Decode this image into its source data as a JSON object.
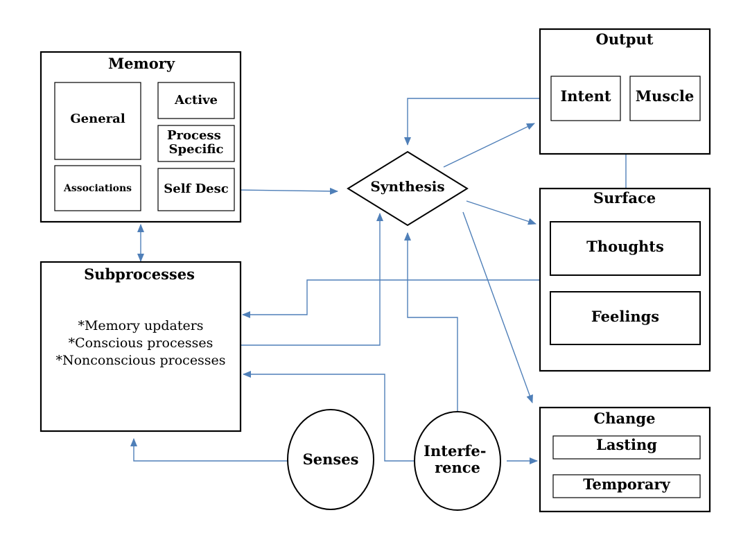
{
  "memory": {
    "title": "Memory",
    "general": "General",
    "active": "Active",
    "process_specific": [
      "Process",
      "Specific"
    ],
    "associations": "Associations",
    "self_desc": "Self Desc"
  },
  "output": {
    "title": "Output",
    "intent": "Intent",
    "muscle": "Muscle"
  },
  "synthesis": "Synthesis",
  "surface": {
    "title": "Surface",
    "thoughts": "Thoughts",
    "feelings": "Feelings"
  },
  "subprocesses": {
    "title": "Subprocesses",
    "items": [
      "*Memory updaters",
      "*Conscious processes",
      "*Nonconscious processes"
    ]
  },
  "change": {
    "title": "Change",
    "lasting": "Lasting",
    "temporary": "Temporary"
  },
  "senses": "Senses",
  "interference": [
    "Interfe-",
    "rence"
  ],
  "colors": {
    "arrow": "#4f7fb8",
    "stroke": "#000000",
    "fill": "#ffffff"
  }
}
